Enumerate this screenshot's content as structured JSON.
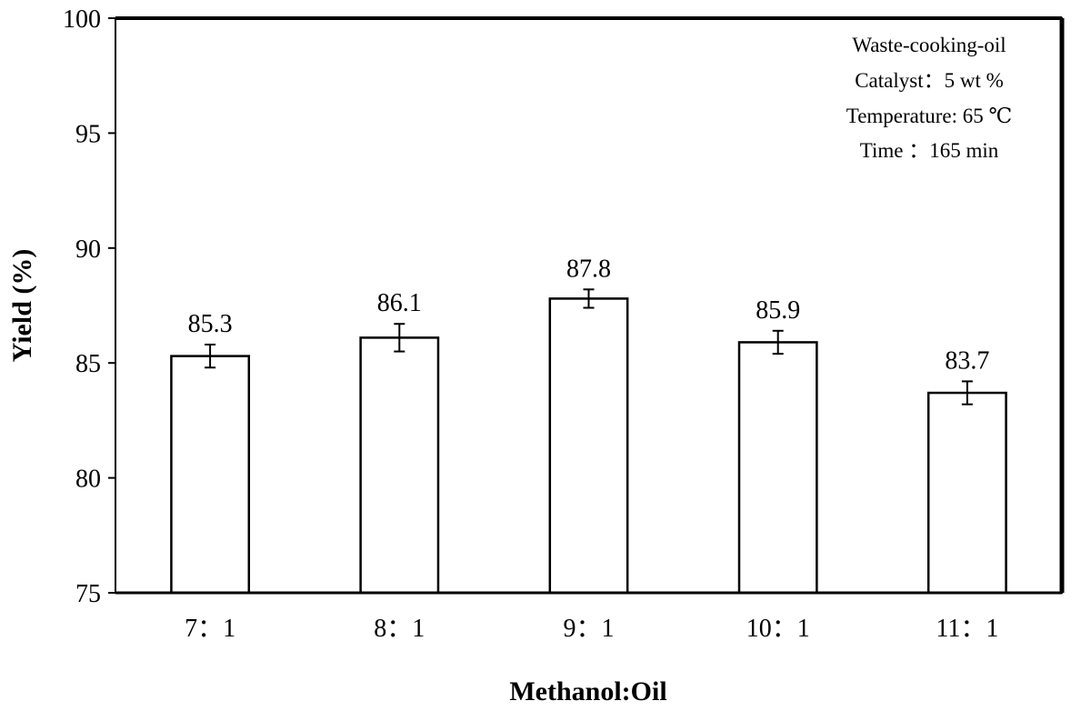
{
  "chart_data": {
    "type": "bar",
    "categories": [
      "7：1",
      "8：1",
      "9：1",
      "10：1",
      "11：1"
    ],
    "values": [
      85.3,
      86.1,
      87.8,
      85.9,
      83.7
    ],
    "errors": [
      0.5,
      0.6,
      0.4,
      0.5,
      0.5
    ],
    "data_labels": [
      "85.3",
      "86.1",
      "87.8",
      "85.9",
      "83.7"
    ],
    "xlabel": "Methanol:Oil",
    "ylabel": "Yield (%)",
    "ylim": [
      75,
      100
    ],
    "yticks": [
      75,
      80,
      85,
      90,
      95,
      100
    ],
    "ytick_labels": [
      "75",
      "80",
      "85",
      "90",
      "95",
      "100"
    ],
    "grid": false,
    "annotations": [
      "Waste-cooking-oil",
      "Catalyst：5  wt %",
      "Temperature: 65 ℃",
      "Time ：165 min"
    ],
    "colors": {
      "bar_fill": "#ffffff",
      "bar_stroke": "#000000",
      "frame": "#000000"
    }
  }
}
